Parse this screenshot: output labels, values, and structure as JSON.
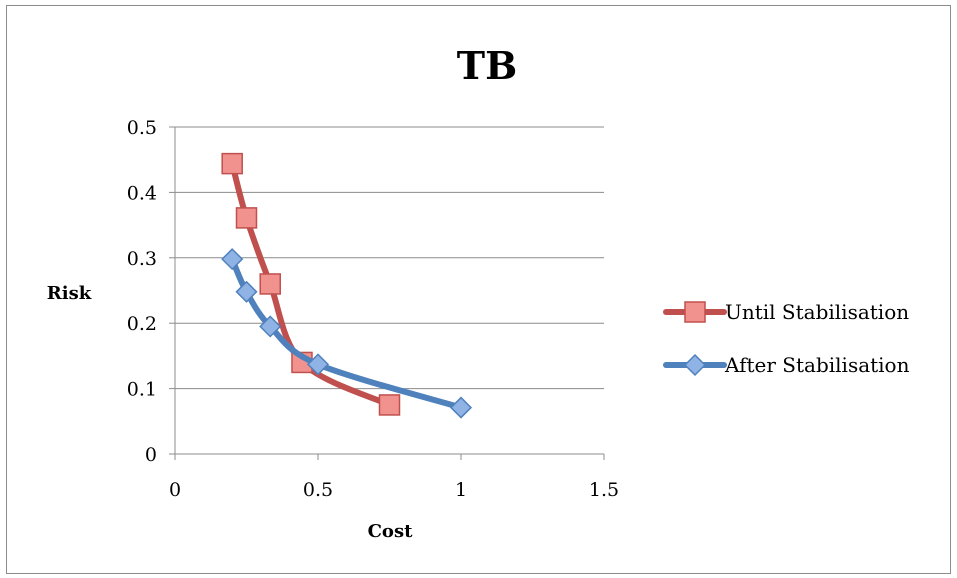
{
  "chart_data": {
    "type": "line",
    "title": "TB",
    "xlabel": "Cost",
    "ylabel": "Risk",
    "xlim": [
      0,
      1.5
    ],
    "ylim": [
      0,
      0.5
    ],
    "x_ticks": [
      "0",
      "0.5",
      "1",
      "1.5"
    ],
    "y_ticks": [
      "0",
      "0.1",
      "0.2",
      "0.3",
      "0.4",
      "0.5"
    ],
    "grid": "horizontal",
    "legend_position": "right",
    "series": [
      {
        "name": "Until Stabilisation",
        "color": "#c0504d",
        "fill": "#f2928f",
        "marker": "square",
        "points": [
          [
            0.2,
            0.444
          ],
          [
            0.25,
            0.361
          ],
          [
            0.333,
            0.26
          ],
          [
            0.444,
            0.14
          ],
          [
            0.75,
            0.075
          ]
        ]
      },
      {
        "name": "After Stabilisation",
        "color": "#4f81bd",
        "fill": "#8fb3e4",
        "marker": "diamond",
        "points": [
          [
            0.2,
            0.298
          ],
          [
            0.25,
            0.248
          ],
          [
            0.333,
            0.195
          ],
          [
            0.5,
            0.137
          ],
          [
            1.0,
            0.071
          ]
        ]
      }
    ]
  }
}
